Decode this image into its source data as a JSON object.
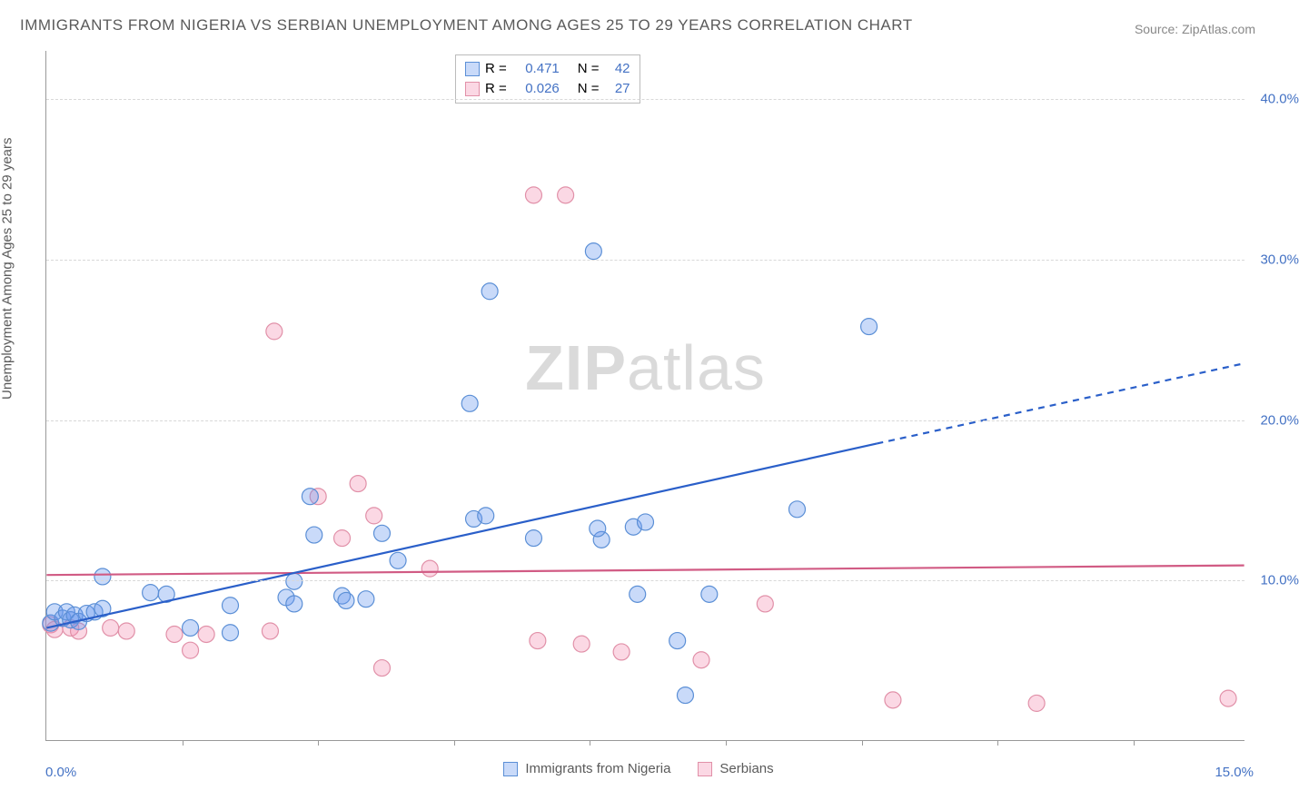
{
  "title": "IMMIGRANTS FROM NIGERIA VS SERBIAN UNEMPLOYMENT AMONG AGES 25 TO 29 YEARS CORRELATION CHART",
  "source_prefix": "Source: ",
  "source_name": "ZipAtlas.com",
  "y_axis_title": "Unemployment Among Ages 25 to 29 years",
  "watermark_a": "ZIP",
  "watermark_b": "atlas",
  "chart": {
    "type": "scatter",
    "background_color": "#ffffff",
    "grid_color": "#d8d8d8",
    "axis_color": "#999999",
    "label_color": "#4472c4",
    "x_domain": [
      0,
      15
    ],
    "y_domain": [
      0,
      43
    ],
    "y_ticks": [
      10,
      20,
      30,
      40
    ],
    "y_tick_labels": [
      "10.0%",
      "20.0%",
      "30.0%",
      "40.0%"
    ],
    "x_ticks": [
      1.7,
      3.4,
      5.1,
      6.8,
      8.5,
      10.2,
      11.9,
      13.6
    ],
    "x_left_label": "0.0%",
    "x_right_label": "15.0%",
    "bottom_legend": [
      {
        "label": "Immigrants from Nigeria",
        "swatch": "blue"
      },
      {
        "label": "Serbians",
        "swatch": "pink"
      }
    ],
    "stats_legend": [
      {
        "swatch": "blue",
        "r_label": "R =",
        "r": "0.471",
        "n_label": "N =",
        "n": "42"
      },
      {
        "swatch": "pink",
        "r_label": "R =",
        "r": "0.026",
        "n_label": "N =",
        "n": "27"
      }
    ],
    "marker_radius": 9,
    "marker_opacity": 0.35,
    "line_width": 2.2,
    "series": {
      "blue": {
        "fill": "rgba(100,149,237,0.35)",
        "stroke": "#5b8fd6",
        "trend_color": "#2a5fc9",
        "trend": {
          "x1": 0,
          "y1": 7.0,
          "x2": 10.4,
          "y2": 18.5,
          "dash_from_x": 10.4,
          "dash_to_x": 15.0,
          "dash_to_y": 23.5
        },
        "points": [
          [
            0.05,
            7.3
          ],
          [
            0.1,
            8.0
          ],
          [
            0.2,
            7.6
          ],
          [
            0.25,
            8.0
          ],
          [
            0.3,
            7.5
          ],
          [
            0.35,
            7.8
          ],
          [
            0.4,
            7.4
          ],
          [
            0.5,
            7.9
          ],
          [
            0.6,
            8.0
          ],
          [
            0.7,
            8.2
          ],
          [
            0.7,
            10.2
          ],
          [
            1.3,
            9.2
          ],
          [
            1.5,
            9.1
          ],
          [
            1.8,
            7.0
          ],
          [
            2.3,
            8.4
          ],
          [
            2.3,
            6.7
          ],
          [
            3.0,
            8.9
          ],
          [
            3.1,
            8.5
          ],
          [
            3.1,
            9.9
          ],
          [
            3.3,
            15.2
          ],
          [
            3.35,
            12.8
          ],
          [
            3.7,
            9.0
          ],
          [
            3.75,
            8.7
          ],
          [
            4.0,
            8.8
          ],
          [
            4.2,
            12.9
          ],
          [
            4.4,
            11.2
          ],
          [
            5.35,
            13.8
          ],
          [
            5.5,
            14.0
          ],
          [
            5.3,
            21.0
          ],
          [
            5.55,
            28.0
          ],
          [
            6.95,
            12.5
          ],
          [
            6.9,
            13.2
          ],
          [
            6.1,
            12.6
          ],
          [
            6.85,
            30.5
          ],
          [
            7.35,
            13.3
          ],
          [
            7.5,
            13.6
          ],
          [
            7.9,
            6.2
          ],
          [
            7.4,
            9.1
          ],
          [
            8.3,
            9.1
          ],
          [
            8.0,
            2.8
          ],
          [
            9.4,
            14.4
          ],
          [
            10.3,
            25.8
          ]
        ]
      },
      "pink": {
        "fill": "rgba(244,143,177,0.35)",
        "stroke": "#e190a8",
        "trend_color": "#d15b84",
        "trend": {
          "x1": 0,
          "y1": 10.3,
          "x2": 15.0,
          "y2": 10.9
        },
        "points": [
          [
            0.05,
            7.2
          ],
          [
            0.1,
            6.9
          ],
          [
            0.3,
            7.0
          ],
          [
            0.4,
            6.8
          ],
          [
            0.8,
            7.0
          ],
          [
            1.0,
            6.8
          ],
          [
            1.6,
            6.6
          ],
          [
            1.8,
            5.6
          ],
          [
            2.0,
            6.6
          ],
          [
            2.8,
            6.8
          ],
          [
            2.85,
            25.5
          ],
          [
            3.4,
            15.2
          ],
          [
            3.7,
            12.6
          ],
          [
            3.9,
            16.0
          ],
          [
            4.1,
            14.0
          ],
          [
            4.2,
            4.5
          ],
          [
            4.8,
            10.7
          ],
          [
            6.15,
            6.2
          ],
          [
            6.1,
            34.0
          ],
          [
            6.5,
            34.0
          ],
          [
            6.7,
            6.0
          ],
          [
            7.2,
            5.5
          ],
          [
            8.2,
            5.0
          ],
          [
            9.0,
            8.5
          ],
          [
            10.6,
            2.5
          ],
          [
            12.4,
            2.3
          ],
          [
            14.8,
            2.6
          ]
        ]
      }
    }
  }
}
